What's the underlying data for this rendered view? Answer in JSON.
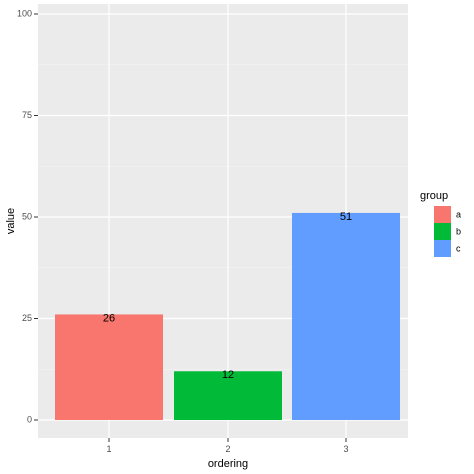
{
  "chart_data": {
    "type": "bar",
    "categories": [
      "1",
      "2",
      "3"
    ],
    "values": [
      26,
      12,
      51
    ],
    "groups": [
      "a",
      "b",
      "c"
    ],
    "data_labels": [
      "26",
      "12",
      "51"
    ],
    "xlabel": "ordering",
    "ylabel": "value",
    "ylim": [
      0,
      100
    ],
    "yticks": [
      0,
      25,
      50,
      75,
      100
    ],
    "grid": true,
    "legend": {
      "title": "group",
      "placement": "right",
      "entries": [
        {
          "label": "a",
          "color": "#F8766D"
        },
        {
          "label": "b",
          "color": "#00BA38"
        },
        {
          "label": "c",
          "color": "#619CFF"
        }
      ]
    },
    "colors": {
      "panel": "#EBEBEB",
      "grid_major": "#FFFFFF",
      "grid_minor": "#F5F5F5"
    }
  }
}
